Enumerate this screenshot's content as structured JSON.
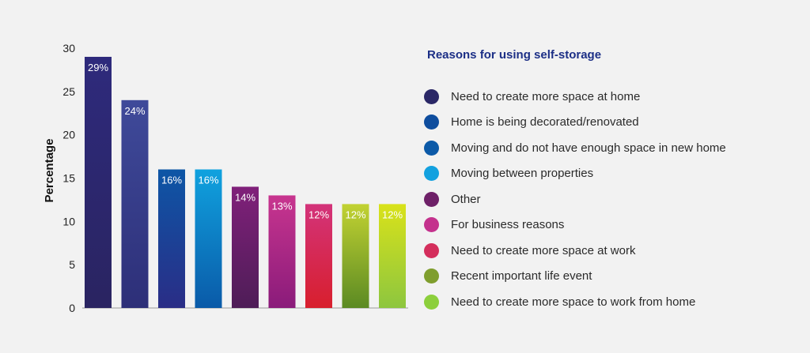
{
  "chart_data": {
    "type": "bar",
    "title": "",
    "xlabel": "",
    "ylabel": "Percentage",
    "ylim": [
      0,
      30
    ],
    "yticks": [
      0,
      5,
      10,
      15,
      20,
      25,
      30
    ],
    "categories": [
      "Need to create more space at home",
      "Home is being decorated/renovated",
      "Moving and do not have enough space in new home",
      "Moving between properties",
      "Other",
      "For business reasons",
      "Need to create more space at work",
      "Recent important life event",
      "Need to create more space to work from home"
    ],
    "values": [
      29,
      24,
      16,
      16,
      14,
      13,
      12,
      12,
      12
    ],
    "data_labels": [
      "29%",
      "24%",
      "16%",
      "16%",
      "14%",
      "13%",
      "12%",
      "12%",
      "12%"
    ],
    "bar_colors": [
      [
        "#2e2a7c",
        "#2a2461"
      ],
      [
        "#3f4a9a",
        "#2d2f78"
      ],
      [
        "#0d56a6",
        "#2a2d86"
      ],
      [
        "#10a2df",
        "#0a5aa8"
      ],
      [
        "#80207a",
        "#4e1d57"
      ],
      [
        "#c8358f",
        "#8a1b7a"
      ],
      [
        "#d3337a",
        "#d81f2d"
      ],
      [
        "#c2d232",
        "#5b8a23"
      ],
      [
        "#d9e21a",
        "#8dc63f"
      ]
    ],
    "legend": {
      "title": "Reasons for using self-storage",
      "position": "right",
      "items": [
        {
          "label": "Need to create more space at home",
          "color": "#2a2766"
        },
        {
          "label": "Home is being decorated/renovated",
          "color": "#0e4d9e"
        },
        {
          "label": "Moving and do not have enough space in new home",
          "color": "#0c5aa8"
        },
        {
          "label": "Moving between properties",
          "color": "#13a1df"
        },
        {
          "label": "Other",
          "color": "#6e2068"
        },
        {
          "label": "For business reasons",
          "color": "#c4318d"
        },
        {
          "label": "Need to create more space at work",
          "color": "#d42e5c"
        },
        {
          "label": "Recent important life event",
          "color": "#7f9e2d"
        },
        {
          "label": "Need to create more space to work from home",
          "color": "#8ccf3c"
        }
      ]
    },
    "grid": false
  }
}
